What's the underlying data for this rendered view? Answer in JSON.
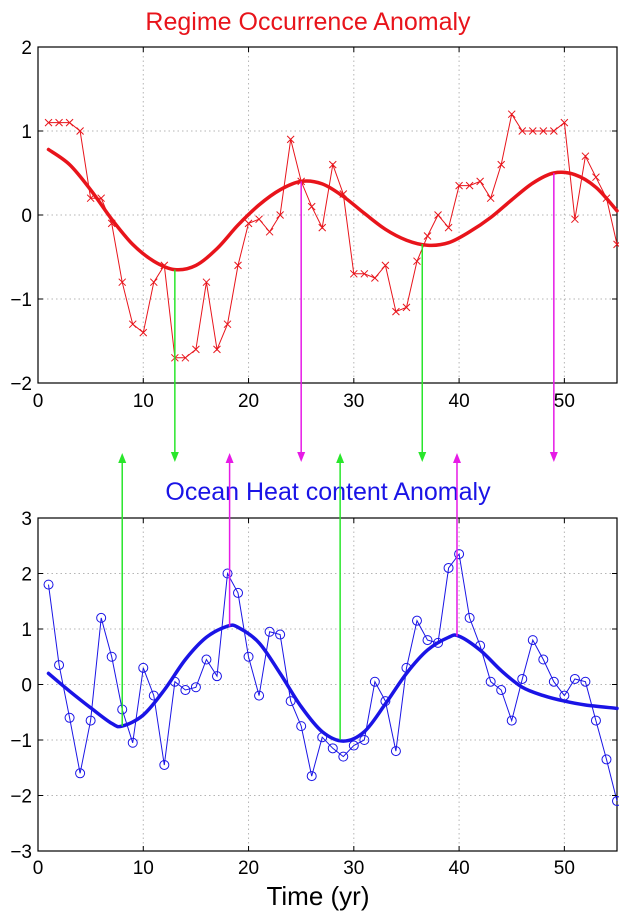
{
  "chart_data": [
    {
      "type": "line",
      "title": "Regime Occurrence Anomaly",
      "title_color": "#e8141b",
      "xlabel": "",
      "ylabel": "",
      "xlim": [
        0,
        55
      ],
      "ylim": [
        -2,
        2
      ],
      "xticks": [
        "0",
        "10",
        "20",
        "30",
        "40",
        "50"
      ],
      "yticks": [
        "2",
        "1",
        "0",
        "−1",
        "−2"
      ],
      "grid": true,
      "series": [
        {
          "style": "raw",
          "marker": "x",
          "color": "#e8141b",
          "x": [
            1,
            2,
            3,
            4,
            5,
            6,
            7,
            8,
            9,
            10,
            11,
            12,
            13,
            14,
            15,
            16,
            17,
            18,
            19,
            20,
            21,
            22,
            23,
            24,
            25,
            26,
            27,
            28,
            29,
            30,
            31,
            32,
            33,
            34,
            35,
            36,
            37,
            38,
            39,
            40,
            41,
            42,
            43,
            44,
            45,
            46,
            47,
            48,
            49,
            50,
            51,
            52,
            53,
            54,
            55
          ],
          "y": [
            1.1,
            1.1,
            1.1,
            1.0,
            0.2,
            0.2,
            -0.1,
            -0.8,
            -1.3,
            -1.4,
            -0.8,
            -0.6,
            -1.7,
            -1.7,
            -1.6,
            -0.8,
            -1.6,
            -1.3,
            -0.6,
            -0.1,
            -0.05,
            -0.2,
            0.0,
            0.9,
            0.4,
            0.1,
            -0.15,
            0.6,
            0.25,
            -0.7,
            -0.7,
            -0.75,
            -0.6,
            -1.15,
            -1.1,
            -0.55,
            -0.25,
            0.0,
            -0.15,
            0.35,
            0.35,
            0.4,
            0.2,
            0.6,
            1.2,
            1.0,
            1.0,
            1.0,
            1.0,
            1.1,
            -0.05,
            0.7,
            0.45,
            0.2,
            -0.35
          ]
        },
        {
          "style": "smooth",
          "color": "#e8141b",
          "x": [
            1,
            3,
            5,
            7,
            9,
            11,
            13,
            15,
            17,
            19,
            21,
            23,
            25,
            27,
            29,
            31,
            33,
            35,
            37,
            39,
            41,
            43,
            45,
            47,
            49,
            51,
            53,
            55
          ],
          "y": [
            0.78,
            0.6,
            0.3,
            -0.05,
            -0.35,
            -0.55,
            -0.65,
            -0.6,
            -0.4,
            -0.12,
            0.12,
            0.3,
            0.4,
            0.37,
            0.22,
            0.02,
            -0.17,
            -0.3,
            -0.36,
            -0.33,
            -0.2,
            -0.03,
            0.18,
            0.38,
            0.5,
            0.48,
            0.33,
            0.05
          ]
        }
      ]
    },
    {
      "type": "line",
      "title": "Ocean Heat content Anomaly",
      "title_color": "#1a14e6",
      "xlabel": "Time (yr)",
      "ylabel": "",
      "xlim": [
        0,
        55
      ],
      "ylim": [
        -3,
        3
      ],
      "xticks": [
        "0",
        "10",
        "20",
        "30",
        "40",
        "50"
      ],
      "yticks": [
        "3",
        "2",
        "1",
        "0",
        "−1",
        "−2",
        "−3"
      ],
      "grid": true,
      "series": [
        {
          "style": "raw",
          "marker": "o",
          "color": "#1a14e6",
          "x": [
            1,
            2,
            3,
            4,
            5,
            6,
            7,
            8,
            9,
            10,
            11,
            12,
            13,
            14,
            15,
            16,
            17,
            18,
            19,
            20,
            21,
            22,
            23,
            24,
            25,
            26,
            27,
            28,
            29,
            30,
            31,
            32,
            33,
            34,
            35,
            36,
            37,
            38,
            39,
            40,
            41,
            42,
            43,
            44,
            45,
            46,
            47,
            48,
            49,
            50,
            51,
            52,
            53,
            54,
            55
          ],
          "y": [
            1.8,
            0.35,
            -0.6,
            -1.6,
            -0.65,
            1.2,
            0.5,
            -0.45,
            -1.05,
            0.3,
            -0.2,
            -1.45,
            0.05,
            -0.1,
            -0.05,
            0.45,
            0.15,
            2.0,
            1.65,
            0.5,
            -0.2,
            0.95,
            0.9,
            -0.3,
            -0.75,
            -1.65,
            -0.95,
            -1.15,
            -1.3,
            -1.1,
            -1.0,
            0.05,
            -0.3,
            -1.2,
            0.3,
            1.15,
            0.8,
            0.75,
            2.1,
            2.35,
            1.2,
            0.7,
            0.05,
            -0.1,
            -0.65,
            0.1,
            0.8,
            0.45,
            0.05,
            -0.2,
            0.1,
            0.05,
            -0.65,
            -1.35,
            -2.1
          ]
        },
        {
          "style": "smooth",
          "color": "#1a14e6",
          "x": [
            1,
            3,
            5,
            7,
            8,
            10,
            12,
            14,
            16,
            18,
            19,
            21,
            23,
            25,
            27,
            29,
            31,
            33,
            35,
            37,
            39,
            40,
            42,
            44,
            46,
            48,
            50,
            52,
            55
          ],
          "y": [
            0.2,
            -0.12,
            -0.42,
            -0.7,
            -0.75,
            -0.55,
            -0.1,
            0.45,
            0.85,
            1.05,
            1.03,
            0.75,
            0.2,
            -0.4,
            -0.85,
            -1.02,
            -0.85,
            -0.35,
            0.2,
            0.62,
            0.85,
            0.87,
            0.62,
            0.25,
            -0.05,
            -0.2,
            -0.3,
            -0.37,
            -0.43
          ]
        }
      ]
    }
  ],
  "arrows": [
    {
      "x": 13,
      "direction": "down",
      "color": "#29e62b"
    },
    {
      "x": 25,
      "direction": "down",
      "color": "#e61ae6"
    },
    {
      "x": 36.5,
      "direction": "down",
      "color": "#29e62b"
    },
    {
      "x": 49,
      "direction": "down",
      "color": "#e61ae6"
    },
    {
      "x": 8,
      "direction": "up",
      "color": "#29e62b"
    },
    {
      "x": 18.2,
      "direction": "up",
      "color": "#e61ae6"
    },
    {
      "x": 28.7,
      "direction": "up",
      "color": "#29e62b"
    },
    {
      "x": 39.8,
      "direction": "up",
      "color": "#e61ae6"
    }
  ]
}
